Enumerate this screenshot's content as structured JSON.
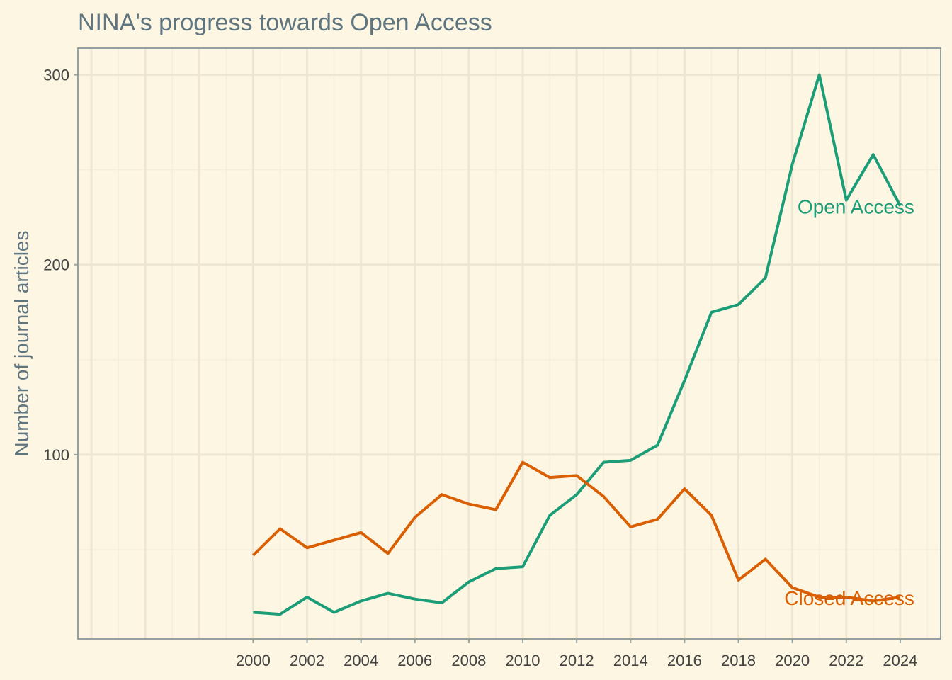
{
  "chart_data": {
    "type": "line",
    "title": "NINA's progress towards Open Access",
    "xlabel": "",
    "ylabel": "Number of journal articles",
    "xlim": [
      1993.5,
      2025.5
    ],
    "ylim": [
      3,
      314
    ],
    "x_ticks": [
      "2000",
      "2002",
      "2004",
      "2006",
      "2008",
      "2010",
      "2012",
      "2014",
      "2016",
      "2018",
      "2020",
      "2022",
      "2024"
    ],
    "y_ticks": [
      "100",
      "200",
      "300"
    ],
    "grid": true,
    "legend": "none",
    "x": [
      2000,
      2001,
      2002,
      2003,
      2004,
      2005,
      2006,
      2007,
      2008,
      2009,
      2010,
      2011,
      2012,
      2013,
      2014,
      2015,
      2016,
      2017,
      2018,
      2019,
      2020,
      2021,
      2022,
      2023,
      2024
    ],
    "series": [
      {
        "name": "Open Access",
        "color": "#1b9e77",
        "values": [
          17,
          16,
          25,
          17,
          23,
          27,
          24,
          22,
          33,
          40,
          41,
          68,
          79,
          96,
          97,
          105,
          139,
          175,
          179,
          193,
          253,
          300,
          234,
          258,
          231
        ]
      },
      {
        "name": "Closed Access",
        "color": "#d95f02",
        "values": [
          47,
          61,
          51,
          55,
          59,
          48,
          67,
          79,
          74,
          71,
          96,
          88,
          89,
          78,
          62,
          66,
          82,
          68,
          34,
          45,
          30,
          25,
          25,
          23,
          25
        ]
      }
    ]
  },
  "colors": {
    "background": "#fdf6e3",
    "panel_border": "#93a1a1",
    "grid_major": "#ede6d2",
    "grid_minor": "#f5eedb",
    "title": "#5f7580",
    "tick": "#444444"
  }
}
